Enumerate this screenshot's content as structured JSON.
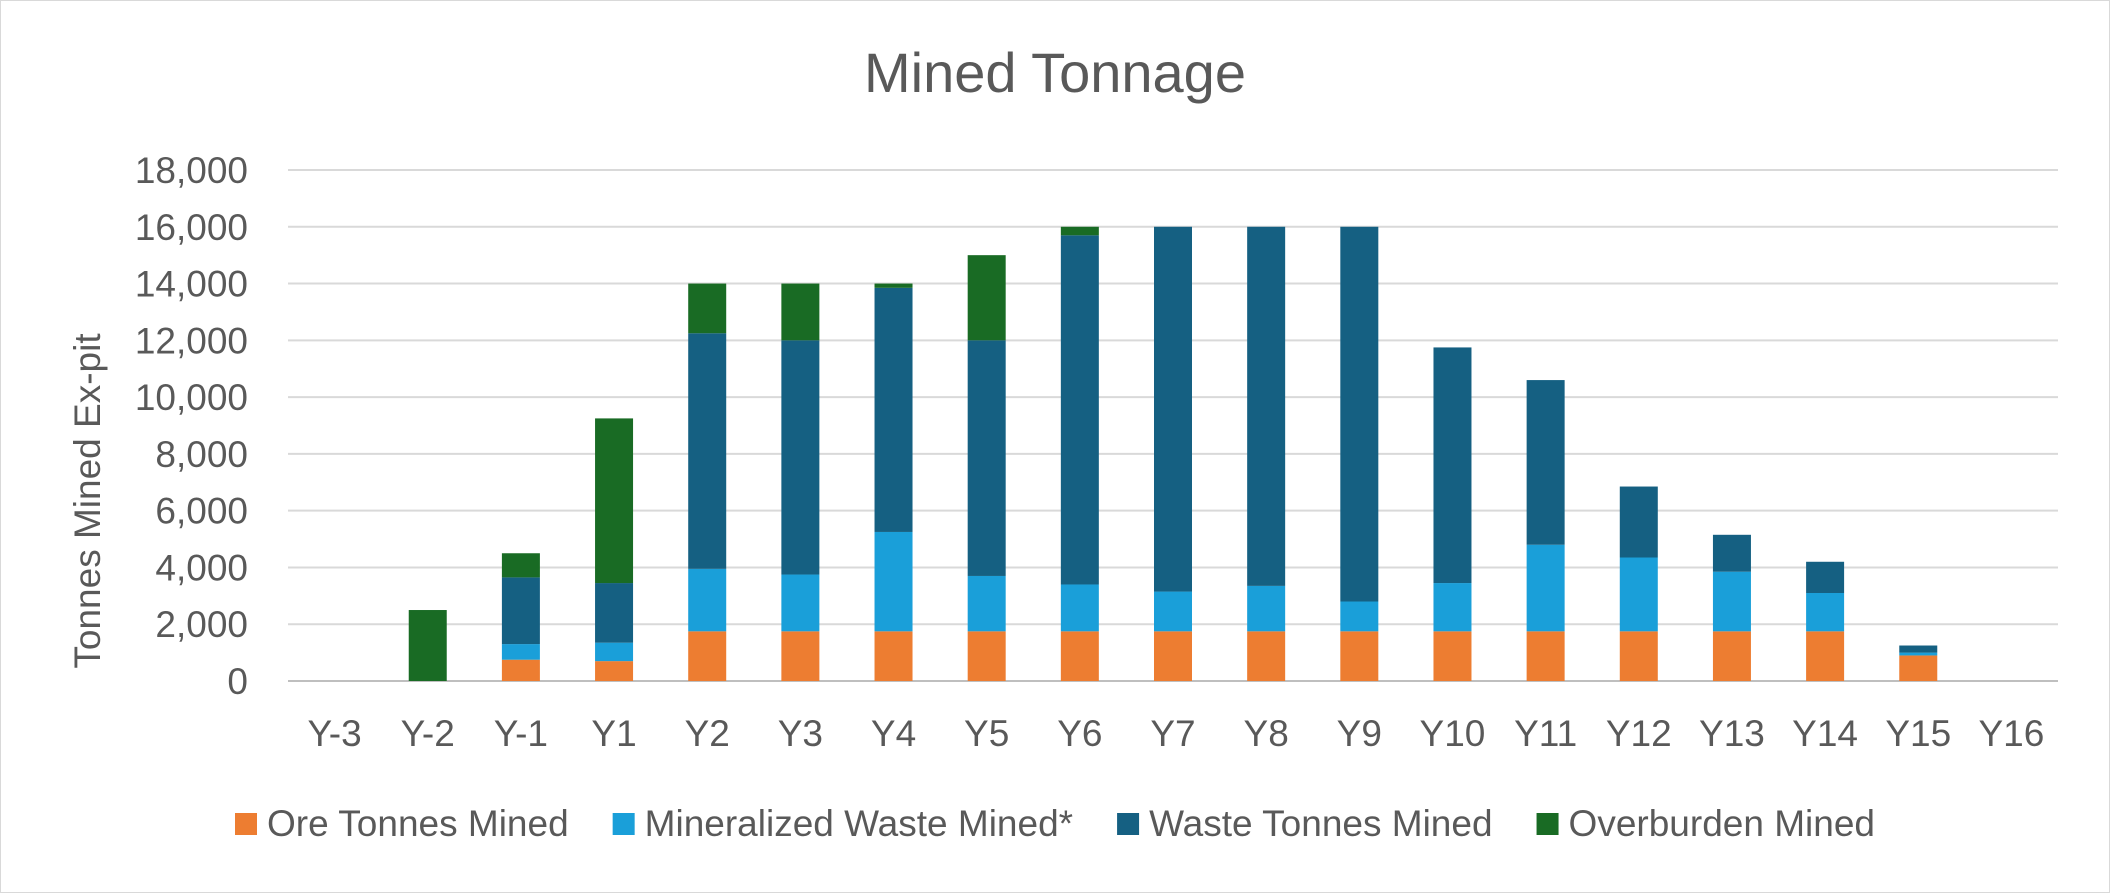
{
  "chart_data": {
    "type": "bar",
    "stacked": true,
    "title": "Mined Tonnage",
    "xlabel": "",
    "ylabel": "Tonnes Mined Ex-pit",
    "ylim": [
      0,
      18000
    ],
    "yticks": [
      0,
      2000,
      4000,
      6000,
      8000,
      10000,
      12000,
      14000,
      16000,
      18000
    ],
    "ytick_labels": [
      "0",
      "2,000",
      "4,000",
      "6,000",
      "8,000",
      "10,000",
      "12,000",
      "14,000",
      "16,000",
      "18,000"
    ],
    "grid": true,
    "legend_position": "bottom",
    "categories": [
      "Y-3",
      "Y-2",
      "Y-1",
      "Y1",
      "Y2",
      "Y3",
      "Y4",
      "Y5",
      "Y6",
      "Y7",
      "Y8",
      "Y9",
      "Y10",
      "Y11",
      "Y12",
      "Y13",
      "Y14",
      "Y15",
      "Y16"
    ],
    "series": [
      {
        "name": "Ore Tonnes Mined",
        "color": "#ED7D31",
        "values": [
          0,
          0,
          750,
          700,
          1750,
          1750,
          1750,
          1750,
          1750,
          1750,
          1750,
          1750,
          1750,
          1750,
          1750,
          1750,
          1750,
          900,
          0
        ]
      },
      {
        "name": "Mineralized Waste Mined*",
        "color": "#1A9FD9",
        "values": [
          0,
          0,
          550,
          650,
          2200,
          2000,
          3500,
          1950,
          1650,
          1400,
          1600,
          1050,
          1700,
          3050,
          2600,
          2100,
          1350,
          100,
          0
        ]
      },
      {
        "name": "Waste Tonnes Mined",
        "color": "#156082",
        "values": [
          0,
          0,
          2350,
          2100,
          8300,
          8250,
          8600,
          8300,
          12300,
          12850,
          12650,
          13200,
          8300,
          5800,
          2500,
          1300,
          1100,
          250,
          0
        ]
      },
      {
        "name": "Overburden Mined",
        "color": "#196B24",
        "values": [
          0,
          2500,
          850,
          5800,
          1750,
          2000,
          150,
          3000,
          300,
          0,
          0,
          0,
          0,
          0,
          0,
          0,
          0,
          0,
          0
        ]
      }
    ]
  }
}
